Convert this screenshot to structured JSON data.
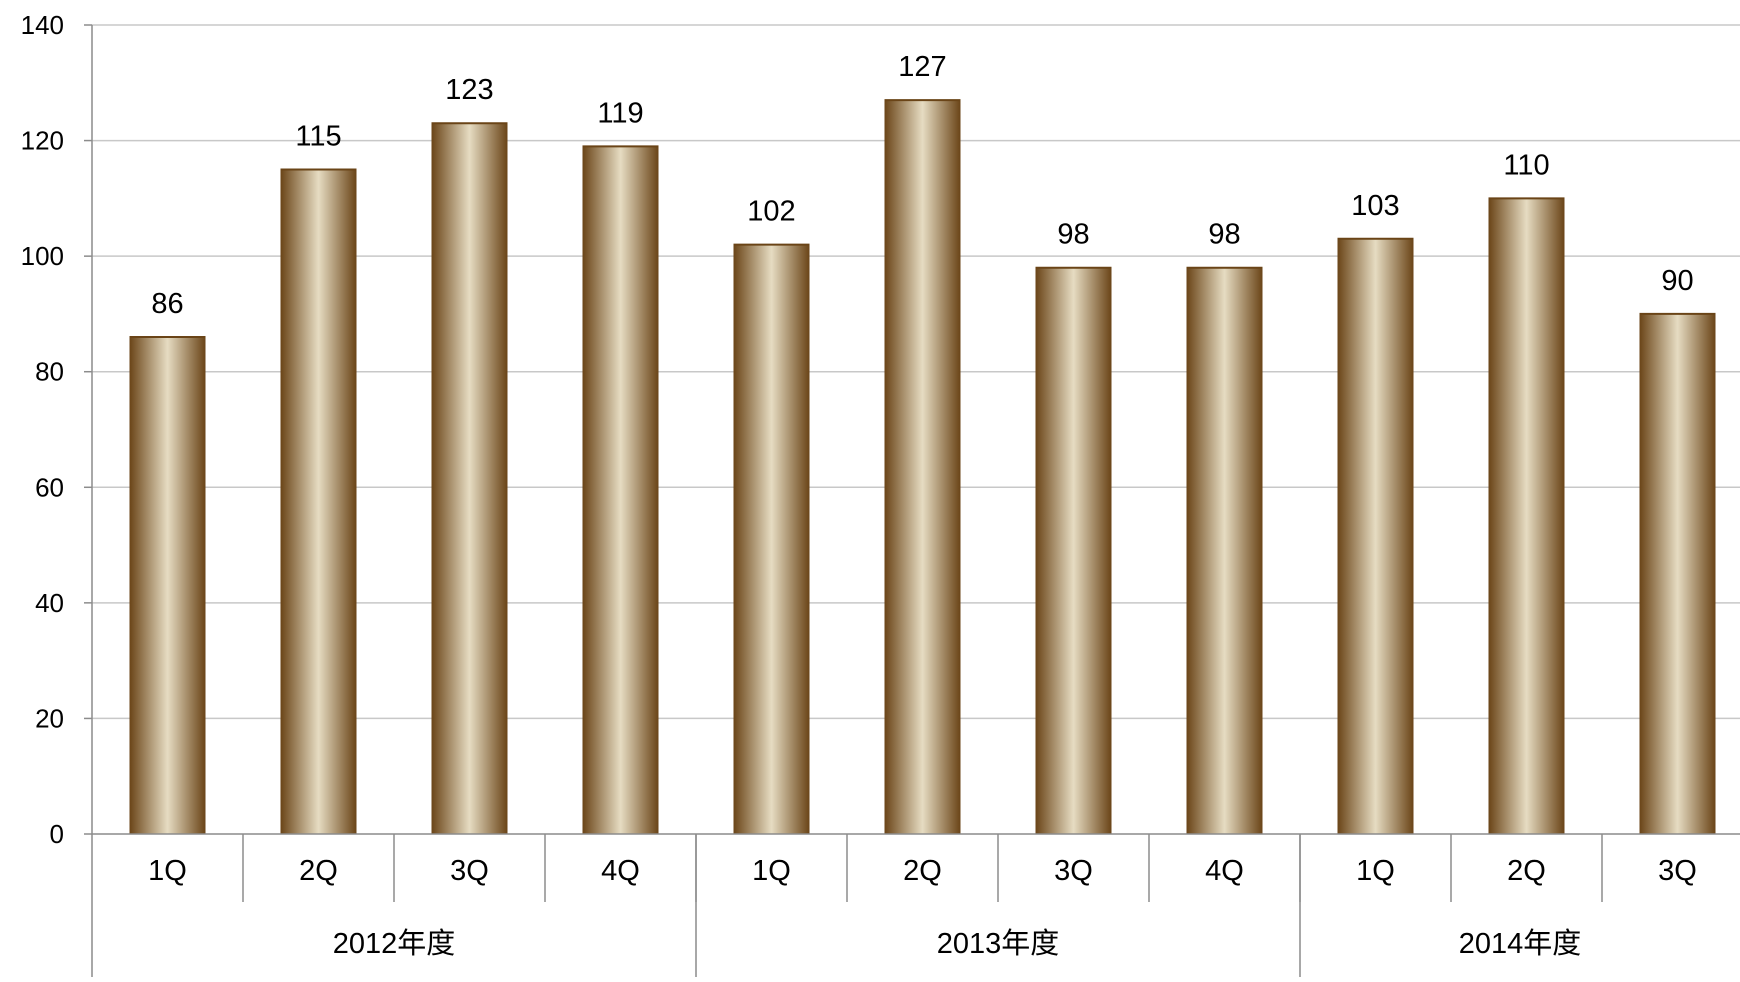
{
  "chart_data": {
    "type": "bar",
    "title": "",
    "xlabel": "",
    "ylabel": "",
    "ylim": [
      0,
      140
    ],
    "yticks": [
      0,
      20,
      40,
      60,
      80,
      100,
      120,
      140
    ],
    "grid": true,
    "legend": "none",
    "categories": [
      "1Q",
      "2Q",
      "3Q",
      "4Q",
      "1Q",
      "2Q",
      "3Q",
      "4Q",
      "1Q",
      "2Q",
      "3Q"
    ],
    "groups": [
      {
        "label": "2012年度",
        "count": 4
      },
      {
        "label": "2013年度",
        "count": 4
      },
      {
        "label": "2014年度",
        "count": 3
      }
    ],
    "values": [
      86,
      115,
      123,
      119,
      102,
      127,
      98,
      98,
      103,
      110,
      90
    ],
    "colors": {
      "bar_dark": "#6a4417",
      "bar_light": "#e6dcc2",
      "grid": "#c8c8c8",
      "axis": "#8c8c8c"
    }
  }
}
